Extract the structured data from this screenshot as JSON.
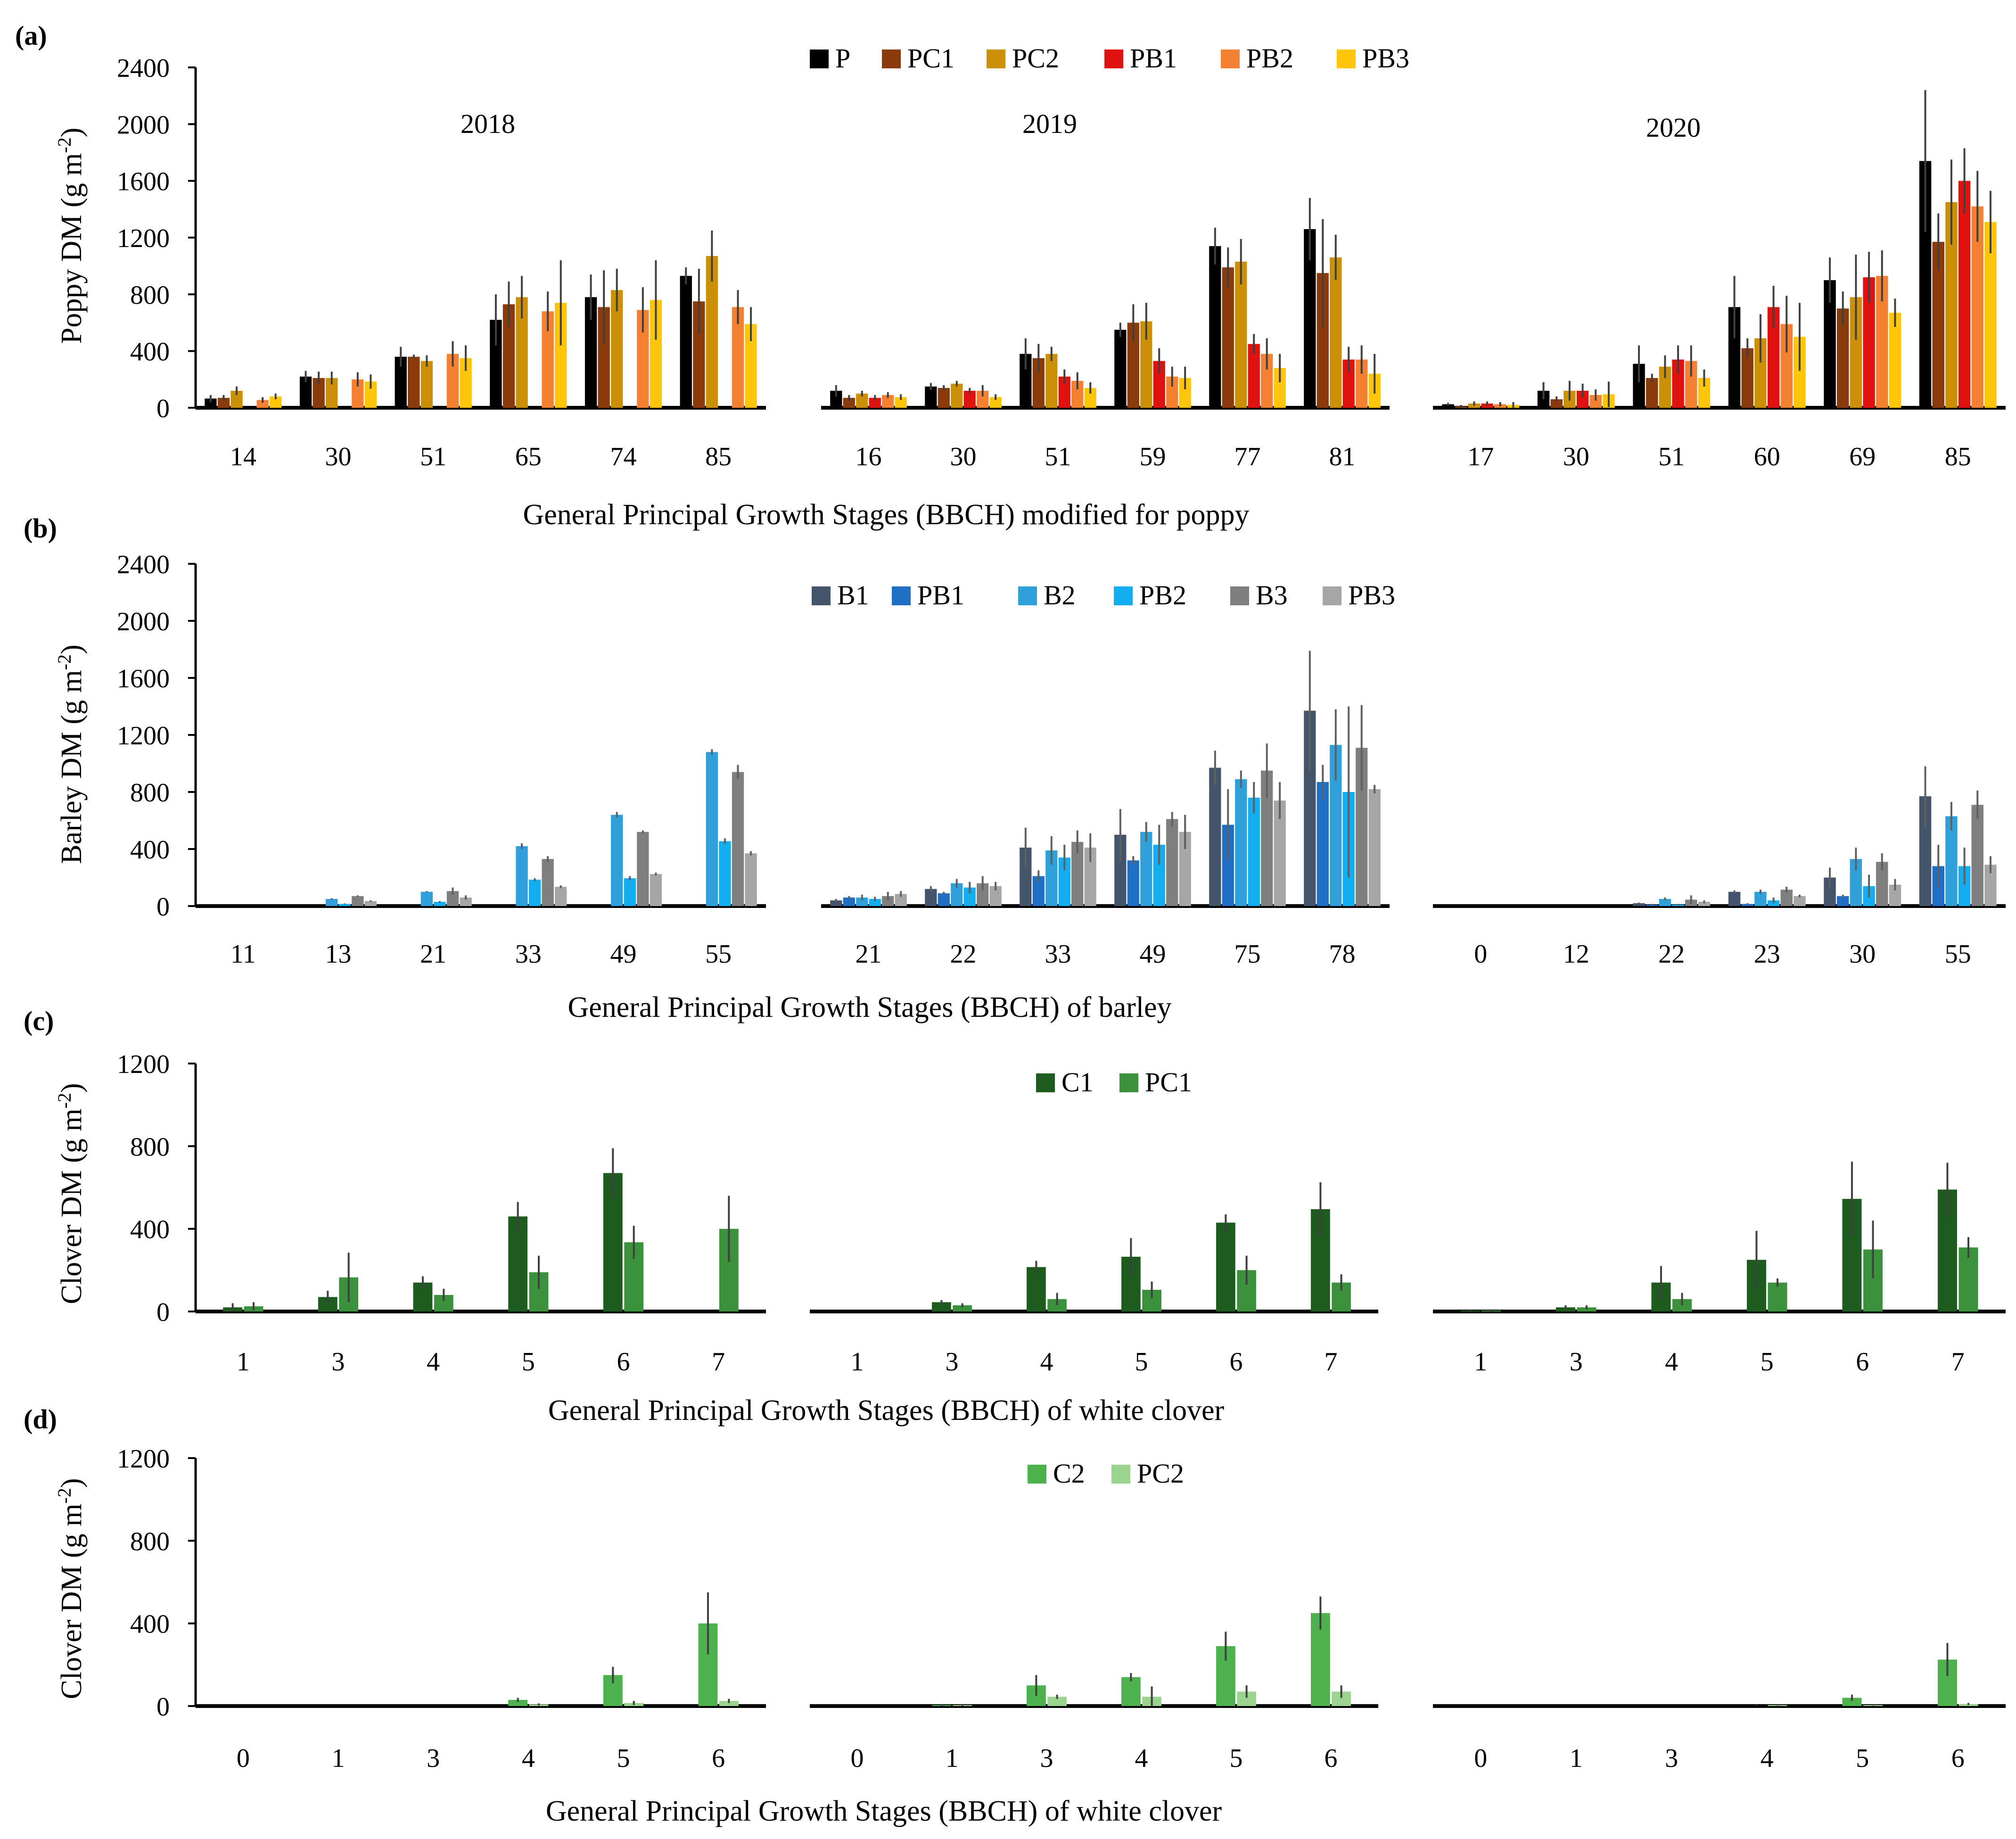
{
  "figure": {
    "panels": [
      {
        "id": "a",
        "label": "(a)",
        "ylabel": "Poppy DM (g m-2)",
        "ylabel_main": "Poppy DM (g m",
        "ylabel_sup": "-2",
        "ylabel_close": ")",
        "xlabel": "General Principal Growth Stages (BBCH)  modified for poppy"
      },
      {
        "id": "b",
        "label": "(b)",
        "ylabel": "Barley DM (g m-2)",
        "ylabel_main": "Barley DM (g m",
        "ylabel_sup": "-2",
        "ylabel_close": ")",
        "xlabel": "General Principal Growth Stages (BBCH)  of barley"
      },
      {
        "id": "c",
        "label": "(c)",
        "ylabel": "Clover DM (g m-2)",
        "ylabel_main": "Clover DM (g m",
        "ylabel_sup": "-2",
        "ylabel_close": ")",
        "xlabel": "General Principal Growth Stages (BBCH)  of white clover"
      },
      {
        "id": "d",
        "label": "(d)",
        "ylabel": "Clover DM (g m-2)",
        "ylabel_main": "Clover DM (g m",
        "ylabel_sup": "-2",
        "ylabel_close": ")",
        "xlabel": "General Principal Growth Stages (BBCH)  of white clover"
      }
    ]
  },
  "chart_data": [
    {
      "panel": "a",
      "type": "bar",
      "ylim": [
        0,
        2400
      ],
      "yticks": [
        0,
        400,
        800,
        1200,
        1600,
        2000,
        2400
      ],
      "series_names": [
        "P",
        "PC1",
        "PC2",
        "PB1",
        "PB2",
        "PB3"
      ],
      "colors": [
        "#000000",
        "#8B3A0C",
        "#CC9008",
        "#E0120F",
        "#F48032",
        "#FFC50A"
      ],
      "years": [
        {
          "year_label": "2018",
          "categories": [
            "14",
            "30",
            "51",
            "65",
            "74",
            "85"
          ],
          "values": [
            [
              65,
              220,
              360,
              620,
              780,
              930
            ],
            [
              70,
              210,
              360,
              730,
              710,
              750
            ],
            [
              120,
              210,
              330,
              780,
              830,
              1070
            ],
            [
              null,
              null,
              null,
              null,
              null,
              null
            ],
            [
              55,
              200,
              380,
              680,
              690,
              710
            ],
            [
              80,
              185,
              350,
              740,
              760,
              590
            ]
          ],
          "errors": [
            [
              25,
              40,
              70,
              180,
              160,
              60
            ],
            [
              20,
              45,
              15,
              160,
              260,
              230
            ],
            [
              30,
              45,
              40,
              150,
              150,
              180
            ],
            [
              null,
              null,
              null,
              null,
              null,
              null
            ],
            [
              20,
              50,
              90,
              140,
              160,
              120
            ],
            [
              20,
              50,
              90,
              300,
              280,
              120
            ]
          ]
        },
        {
          "year_label": "2019",
          "categories": [
            "16",
            "30",
            "51",
            "59",
            "77",
            "81"
          ],
          "values": [
            [
              120,
              150,
              380,
              550,
              1140,
              1260
            ],
            [
              70,
              140,
              350,
              600,
              990,
              950
            ],
            [
              100,
              170,
              380,
              610,
              1030,
              1060
            ],
            [
              70,
              120,
              220,
              330,
              450,
              340
            ],
            [
              90,
              120,
              190,
              220,
              380,
              340
            ],
            [
              75,
              75,
              140,
              210,
              280,
              240
            ]
          ],
          "errors": [
            [
              40,
              25,
              110,
              50,
              130,
              220
            ],
            [
              20,
              20,
              100,
              130,
              140,
              380
            ],
            [
              20,
              20,
              50,
              130,
              160,
              160
            ],
            [
              20,
              20,
              50,
              90,
              70,
              90
            ],
            [
              20,
              40,
              60,
              70,
              110,
              100
            ],
            [
              20,
              20,
              40,
              80,
              100,
              140
            ]
          ]
        },
        {
          "year_label": "2020",
          "categories": [
            "17",
            "30",
            "51",
            "60",
            "69",
            "85"
          ],
          "values": [
            [
              25,
              120,
              310,
              710,
              900,
              1740
            ],
            [
              10,
              60,
              210,
              420,
              700,
              1170
            ],
            [
              30,
              120,
              290,
              490,
              780,
              1450
            ],
            [
              30,
              120,
              340,
              710,
              920,
              1600
            ],
            [
              25,
              90,
              330,
              590,
              930,
              1420
            ],
            [
              20,
              95,
              210,
              500,
              670,
              1310
            ]
          ],
          "errors": [
            [
              10,
              60,
              130,
              220,
              160,
              500
            ],
            [
              10,
              20,
              30,
              70,
              120,
              200
            ],
            [
              15,
              70,
              80,
              170,
              300,
              300
            ],
            [
              15,
              50,
              100,
              150,
              180,
              230
            ],
            [
              15,
              40,
              110,
              200,
              180,
              250
            ],
            [
              20,
              90,
              60,
              240,
              100,
              220
            ]
          ]
        }
      ]
    },
    {
      "panel": "b",
      "type": "bar",
      "ylim": [
        0,
        2400
      ],
      "yticks": [
        0,
        400,
        800,
        1200,
        1600,
        2000,
        2400
      ],
      "series_names": [
        "B1",
        "PB1",
        "B2",
        "PB2",
        "B3",
        "PB3"
      ],
      "colors": [
        "#44546A",
        "#1F6FC5",
        "#2FA0DA",
        "#12AEEF",
        "#7F7F7F",
        "#A6A6A6"
      ],
      "years": [
        {
          "year_label": "",
          "categories": [
            "11",
            "13",
            "21",
            "33",
            "49",
            "55"
          ],
          "values": [
            [
              null,
              null,
              null,
              null,
              null,
              null
            ],
            [
              null,
              null,
              null,
              null,
              null,
              null
            ],
            [
              0,
              50,
              100,
              420,
              640,
              1080
            ],
            [
              0,
              15,
              30,
              185,
              195,
              455
            ],
            [
              0,
              70,
              105,
              330,
              520,
              940
            ],
            [
              0,
              35,
              60,
              135,
              225,
              370
            ]
          ],
          "errors": [
            [
              null,
              null,
              null,
              null,
              null,
              null
            ],
            [
              null,
              null,
              null,
              null,
              null,
              null
            ],
            [
              0,
              5,
              5,
              20,
              20,
              20
            ],
            [
              0,
              3,
              5,
              10,
              15,
              20
            ],
            [
              0,
              5,
              25,
              20,
              10,
              50
            ],
            [
              0,
              5,
              15,
              10,
              10,
              15
            ]
          ]
        },
        {
          "year_label": "",
          "categories": [
            "21",
            "22",
            "33",
            "49",
            "75",
            "78"
          ],
          "values": [
            [
              40,
              120,
              410,
              500,
              970,
              1370
            ],
            [
              60,
              90,
              210,
              320,
              570,
              870
            ],
            [
              60,
              160,
              390,
              520,
              890,
              1130
            ],
            [
              50,
              130,
              340,
              430,
              760,
              800
            ],
            [
              70,
              160,
              450,
              610,
              950,
              1110
            ],
            [
              85,
              140,
              410,
              520,
              740,
              820
            ]
          ],
          "errors": [
            [
              10,
              20,
              140,
              180,
              120,
              420
            ],
            [
              10,
              10,
              40,
              30,
              250,
              120
            ],
            [
              20,
              30,
              100,
              70,
              60,
              250
            ],
            [
              15,
              40,
              90,
              140,
              110,
              600
            ],
            [
              30,
              50,
              80,
              50,
              190,
              300
            ],
            [
              20,
              30,
              100,
              120,
              130,
              30
            ]
          ]
        },
        {
          "year_label": "",
          "categories": [
            "0",
            "12",
            "22",
            "23",
            "30",
            "55"
          ],
          "values": [
            [
              0,
              0,
              20,
              100,
              200,
              770
            ],
            [
              0,
              0,
              10,
              15,
              70,
              280
            ],
            [
              0,
              0,
              50,
              100,
              330,
              630
            ],
            [
              0,
              0,
              10,
              40,
              140,
              280
            ],
            [
              0,
              0,
              45,
              115,
              310,
              710
            ],
            [
              0,
              0,
              30,
              70,
              150,
              290
            ]
          ],
          "errors": [
            [
              0,
              0,
              5,
              10,
              70,
              210
            ],
            [
              0,
              0,
              5,
              5,
              10,
              150
            ],
            [
              0,
              0,
              10,
              15,
              80,
              100
            ],
            [
              0,
              0,
              5,
              20,
              80,
              130
            ],
            [
              0,
              0,
              30,
              20,
              60,
              100
            ],
            [
              0,
              0,
              10,
              10,
              40,
              60
            ]
          ]
        }
      ]
    },
    {
      "panel": "c",
      "type": "bar",
      "ylim": [
        0,
        1200
      ],
      "yticks": [
        0,
        400,
        800,
        1200
      ],
      "series_names": [
        "C1",
        "PC1"
      ],
      "colors": [
        "#1E5B1E",
        "#3C923C"
      ],
      "years": [
        {
          "year_label": "",
          "categories": [
            "1",
            "3",
            "4",
            "5",
            "6",
            "7"
          ],
          "values": [
            [
              20,
              70,
              140,
              460,
              670,
              null
            ],
            [
              25,
              165,
              80,
              190,
              335,
              400
            ]
          ],
          "errors": [
            [
              20,
              30,
              30,
              70,
              120,
              null
            ],
            [
              20,
              120,
              30,
              80,
              80,
              160
            ]
          ]
        },
        {
          "year_label": "",
          "categories": [
            "1",
            "3",
            "4",
            "5",
            "6",
            "7"
          ],
          "values": [
            [
              0,
              45,
              215,
              265,
              430,
              495
            ],
            [
              0,
              30,
              60,
              105,
              200,
              140
            ]
          ],
          "errors": [
            [
              0,
              10,
              30,
              90,
              40,
              130
            ],
            [
              0,
              10,
              30,
              40,
              70,
              40
            ]
          ]
        },
        {
          "year_label": "",
          "categories": [
            "1",
            "3",
            "4",
            "5",
            "6",
            "7"
          ],
          "values": [
            [
              5,
              20,
              140,
              250,
              545,
              590
            ],
            [
              5,
              20,
              60,
              140,
              300,
              310
            ]
          ],
          "errors": [
            [
              5,
              10,
              80,
              140,
              180,
              130
            ],
            [
              5,
              10,
              30,
              20,
              140,
              50
            ]
          ]
        }
      ]
    },
    {
      "panel": "d",
      "type": "bar",
      "ylim": [
        0,
        1200
      ],
      "yticks": [
        0,
        400,
        800,
        1200
      ],
      "series_names": [
        "C2",
        "PC2"
      ],
      "colors": [
        "#4DB24D",
        "#9BD48F"
      ],
      "years": [
        {
          "year_label": "",
          "categories": [
            "0",
            "1",
            "3",
            "4",
            "5",
            "6"
          ],
          "values": [
            [
              0,
              0,
              0,
              30,
              150,
              400
            ],
            [
              0,
              0,
              0,
              8,
              15,
              25
            ]
          ],
          "errors": [
            [
              0,
              0,
              0,
              10,
              40,
              150
            ],
            [
              0,
              0,
              0,
              5,
              10,
              10
            ]
          ]
        },
        {
          "year_label": "",
          "categories": [
            "0",
            "1",
            "3",
            "4",
            "5",
            "6"
          ],
          "values": [
            [
              0,
              5,
              100,
              140,
              290,
              450
            ],
            [
              0,
              5,
              45,
              45,
              70,
              70
            ]
          ],
          "errors": [
            [
              0,
              5,
              50,
              20,
              70,
              80
            ],
            [
              0,
              5,
              10,
              50,
              30,
              30
            ]
          ]
        },
        {
          "year_label": "",
          "categories": [
            "0",
            "1",
            "3",
            "4",
            "5",
            "6"
          ],
          "values": [
            [
              0,
              0,
              0,
              0,
              40,
              225
            ],
            [
              0,
              0,
              0,
              5,
              5,
              10
            ]
          ],
          "errors": [
            [
              0,
              0,
              0,
              5,
              15,
              80
            ],
            [
              0,
              0,
              0,
              3,
              3,
              5
            ]
          ]
        }
      ]
    }
  ]
}
